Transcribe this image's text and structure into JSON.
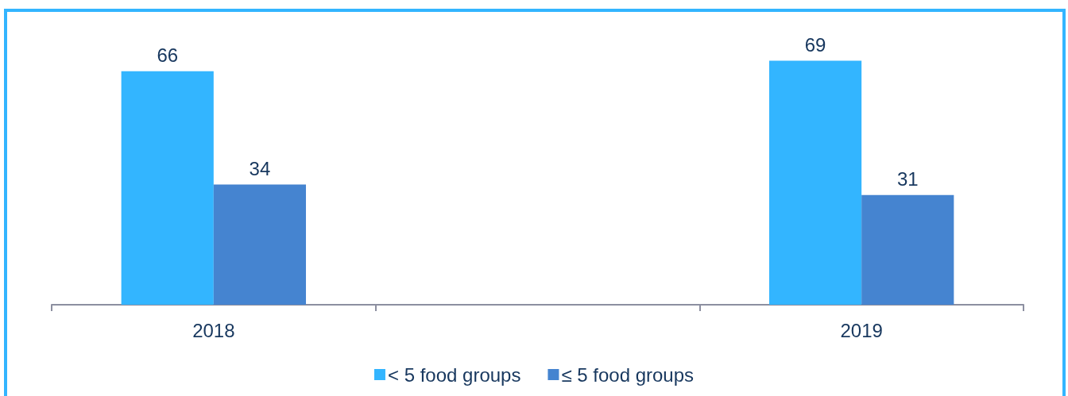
{
  "chart_data": {
    "type": "bar",
    "categories": [
      "2018",
      null,
      "2019"
    ],
    "series": [
      {
        "name": "< 5 food groups",
        "color": "#33b5ff",
        "values": [
          66,
          null,
          69
        ]
      },
      {
        "name": "≤ 5 food groups",
        "color": "#4584d0",
        "values": [
          34,
          null,
          31
        ]
      }
    ],
    "data_labels": true,
    "legend": "bottom",
    "tick_labels": "x"
  }
}
